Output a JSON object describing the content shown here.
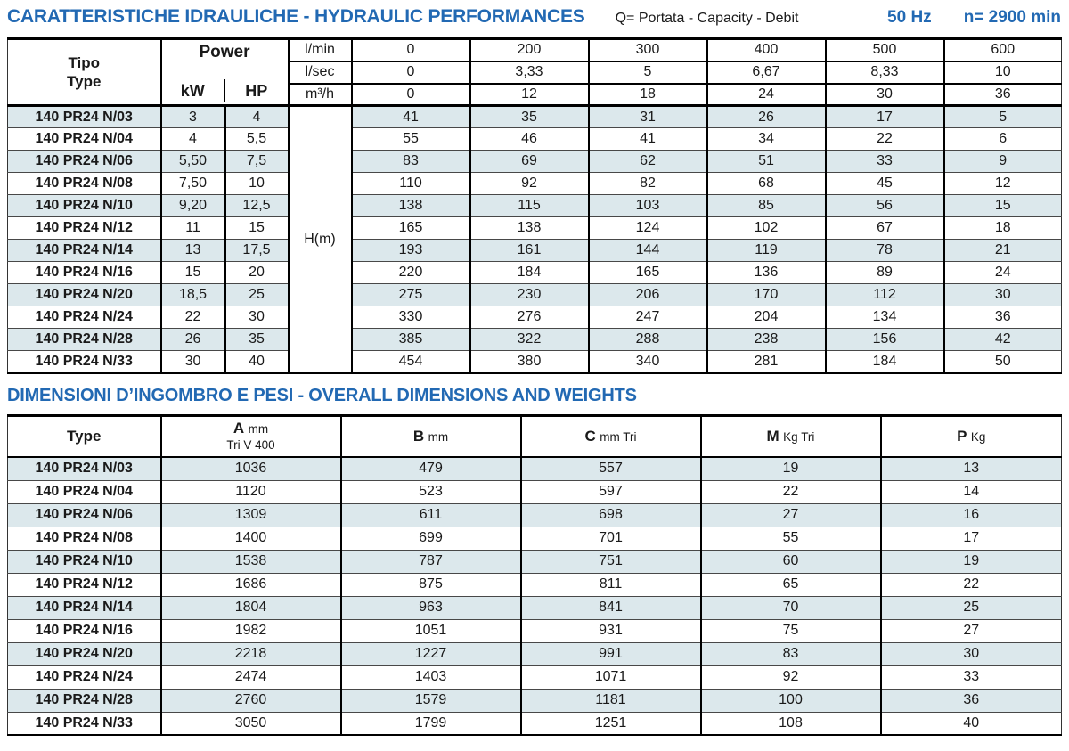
{
  "colors": {
    "accent_blue": "#2269b3",
    "row_shade": "#dce8ec",
    "border_black": "#000000"
  },
  "header": {
    "title": "CARATTERISTICHE IDRAULICHE - HYDRAULIC PERFORMANCES",
    "flow_legend": "Q= Portata - Capacity - Debit",
    "frequency": "50 Hz",
    "speed": "n= 2900 min"
  },
  "hydraulic_table": {
    "type_label_it": "Tipo",
    "type_label_en": "Type",
    "power_label": "Power",
    "kw_label": "kW",
    "hp_label": "HP",
    "head_label": "H(m)",
    "flow_rows": [
      {
        "unit": "l/min",
        "values": [
          "0",
          "200",
          "300",
          "400",
          "500",
          "600"
        ]
      },
      {
        "unit": "l/sec",
        "values": [
          "0",
          "3,33",
          "5",
          "6,67",
          "8,33",
          "10"
        ]
      },
      {
        "unit": "m³/h",
        "values": [
          "0",
          "12",
          "18",
          "24",
          "30",
          "36"
        ]
      }
    ],
    "rows": [
      {
        "type": "140 PR24 N/03",
        "kw": "3",
        "hp": "4",
        "head": [
          "41",
          "35",
          "31",
          "26",
          "17",
          "5"
        ]
      },
      {
        "type": "140 PR24 N/04",
        "kw": "4",
        "hp": "5,5",
        "head": [
          "55",
          "46",
          "41",
          "34",
          "22",
          "6"
        ]
      },
      {
        "type": "140 PR24 N/06",
        "kw": "5,50",
        "hp": "7,5",
        "head": [
          "83",
          "69",
          "62",
          "51",
          "33",
          "9"
        ]
      },
      {
        "type": "140 PR24 N/08",
        "kw": "7,50",
        "hp": "10",
        "head": [
          "110",
          "92",
          "82",
          "68",
          "45",
          "12"
        ]
      },
      {
        "type": "140 PR24 N/10",
        "kw": "9,20",
        "hp": "12,5",
        "head": [
          "138",
          "115",
          "103",
          "85",
          "56",
          "15"
        ]
      },
      {
        "type": "140 PR24 N/12",
        "kw": "11",
        "hp": "15",
        "head": [
          "165",
          "138",
          "124",
          "102",
          "67",
          "18"
        ]
      },
      {
        "type": "140 PR24 N/14",
        "kw": "13",
        "hp": "17,5",
        "head": [
          "193",
          "161",
          "144",
          "119",
          "78",
          "21"
        ]
      },
      {
        "type": "140 PR24 N/16",
        "kw": "15",
        "hp": "20",
        "head": [
          "220",
          "184",
          "165",
          "136",
          "89",
          "24"
        ]
      },
      {
        "type": "140 PR24 N/20",
        "kw": "18,5",
        "hp": "25",
        "head": [
          "275",
          "230",
          "206",
          "170",
          "112",
          "30"
        ]
      },
      {
        "type": "140 PR24 N/24",
        "kw": "22",
        "hp": "30",
        "head": [
          "330",
          "276",
          "247",
          "204",
          "134",
          "36"
        ]
      },
      {
        "type": "140 PR24 N/28",
        "kw": "26",
        "hp": "35",
        "head": [
          "385",
          "322",
          "288",
          "238",
          "156",
          "42"
        ]
      },
      {
        "type": "140 PR24 N/33",
        "kw": "30",
        "hp": "40",
        "head": [
          "454",
          "380",
          "340",
          "281",
          "184",
          "50"
        ]
      }
    ]
  },
  "dimensions_table": {
    "title": "DIMENSIONI D’INGOMBRO E PESI - OVERALL DIMENSIONS AND WEIGHTS",
    "columns": [
      {
        "key": "type",
        "label": "Type"
      },
      {
        "key": "a",
        "letter": "A",
        "unit": "mm",
        "line2": "Tri V 400"
      },
      {
        "key": "b",
        "letter": "B",
        "unit": "mm"
      },
      {
        "key": "c",
        "letter": "C",
        "unit": "mm Tri"
      },
      {
        "key": "m",
        "letter": "M",
        "unit": "Kg Tri"
      },
      {
        "key": "p",
        "letter": "P",
        "unit": "Kg"
      }
    ],
    "rows": [
      {
        "type": "140 PR24 N/03",
        "values": [
          "1036",
          "479",
          "557",
          "19",
          "13"
        ]
      },
      {
        "type": "140 PR24 N/04",
        "values": [
          "1120",
          "523",
          "597",
          "22",
          "14"
        ]
      },
      {
        "type": "140 PR24 N/06",
        "values": [
          "1309",
          "611",
          "698",
          "27",
          "16"
        ]
      },
      {
        "type": "140 PR24 N/08",
        "values": [
          "1400",
          "699",
          "701",
          "55",
          "17"
        ]
      },
      {
        "type": "140 PR24 N/10",
        "values": [
          "1538",
          "787",
          "751",
          "60",
          "19"
        ]
      },
      {
        "type": "140 PR24 N/12",
        "values": [
          "1686",
          "875",
          "811",
          "65",
          "22"
        ]
      },
      {
        "type": "140 PR24 N/14",
        "values": [
          "1804",
          "963",
          "841",
          "70",
          "25"
        ]
      },
      {
        "type": "140 PR24 N/16",
        "values": [
          "1982",
          "1051",
          "931",
          "75",
          "27"
        ]
      },
      {
        "type": "140 PR24 N/20",
        "values": [
          "2218",
          "1227",
          "991",
          "83",
          "30"
        ]
      },
      {
        "type": "140 PR24 N/24",
        "values": [
          "2474",
          "1403",
          "1071",
          "92",
          "33"
        ]
      },
      {
        "type": "140 PR24 N/28",
        "values": [
          "2760",
          "1579",
          "1181",
          "100",
          "36"
        ]
      },
      {
        "type": "140 PR24 N/33",
        "values": [
          "3050",
          "1799",
          "1251",
          "108",
          "40"
        ]
      }
    ]
  }
}
